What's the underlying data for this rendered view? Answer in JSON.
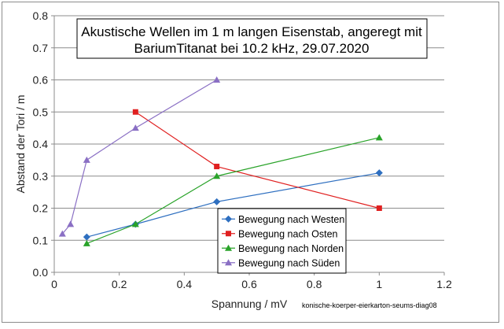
{
  "chart_data": {
    "type": "line",
    "title_line1": "Akustische Wellen im 1 m langen  Eisenstab, angeregt mit",
    "title_line2": "BariumTitanat  bei 10.2 kHz, 29.07.2020",
    "xlabel": "Spannung / mV",
    "ylabel": "Abstand der Tori / m",
    "xlim": [
      0,
      1.2
    ],
    "ylim": [
      0,
      0.8
    ],
    "x_ticks": [
      "0",
      "0.2",
      "0.4",
      "0.6",
      "0.8",
      "1",
      "1.2"
    ],
    "y_ticks": [
      "0.0",
      "0.1",
      "0.2",
      "0.3",
      "0.4",
      "0.5",
      "0.6",
      "0.7",
      "0.8"
    ],
    "grid": "horizontal",
    "legend_position": "bottom-right",
    "series": [
      {
        "name": "Bewegung nach Westen",
        "color": "#2e6fc0",
        "marker": "diamond",
        "x": [
          0.1,
          0.25,
          0.5,
          1.0
        ],
        "y": [
          0.11,
          0.15,
          0.22,
          0.31
        ]
      },
      {
        "name": "Bewegung nach Osten",
        "color": "#e02020",
        "marker": "square",
        "x": [
          0.25,
          0.5,
          1.0
        ],
        "y": [
          0.5,
          0.33,
          0.2
        ]
      },
      {
        "name": "Bewegung nach Norden",
        "color": "#29a329",
        "marker": "triangle",
        "x": [
          0.1,
          0.25,
          0.5,
          1.0
        ],
        "y": [
          0.09,
          0.15,
          0.3,
          0.42
        ]
      },
      {
        "name": "Bewegung nach Süden",
        "color": "#8a6fc4",
        "marker": "triangle",
        "x": [
          0.025,
          0.05,
          0.1,
          0.25,
          0.5
        ],
        "y": [
          0.12,
          0.15,
          0.35,
          0.45,
          0.6
        ]
      }
    ],
    "watermark": "konische-koerper-eierkarton-seums-diag08"
  }
}
